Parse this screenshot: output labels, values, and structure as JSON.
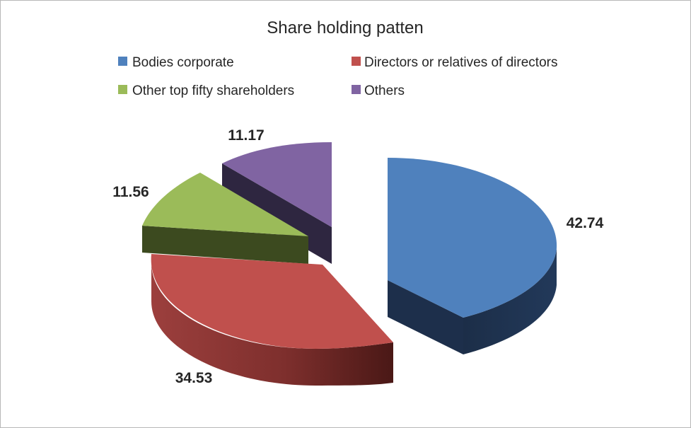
{
  "chart_data": {
    "type": "pie",
    "variant": "3d-exploded",
    "title": "Share holding patten",
    "legend_position": "top",
    "categories": [
      "Bodies corporate",
      "Directors or relatives of directors",
      "Other top fifty shareholders",
      "Others"
    ],
    "values": [
      42.74,
      34.53,
      11.56,
      11.17
    ],
    "data_labels": [
      "42.74",
      "34.53",
      "11.56",
      "11.17"
    ],
    "colors": [
      "#4F81BD",
      "#C0504D",
      "#9BBB59",
      "#8064A2"
    ],
    "side_colors": [
      "#1F3350",
      "#5A1F1D",
      "#3C4A1F",
      "#2E2640"
    ]
  }
}
